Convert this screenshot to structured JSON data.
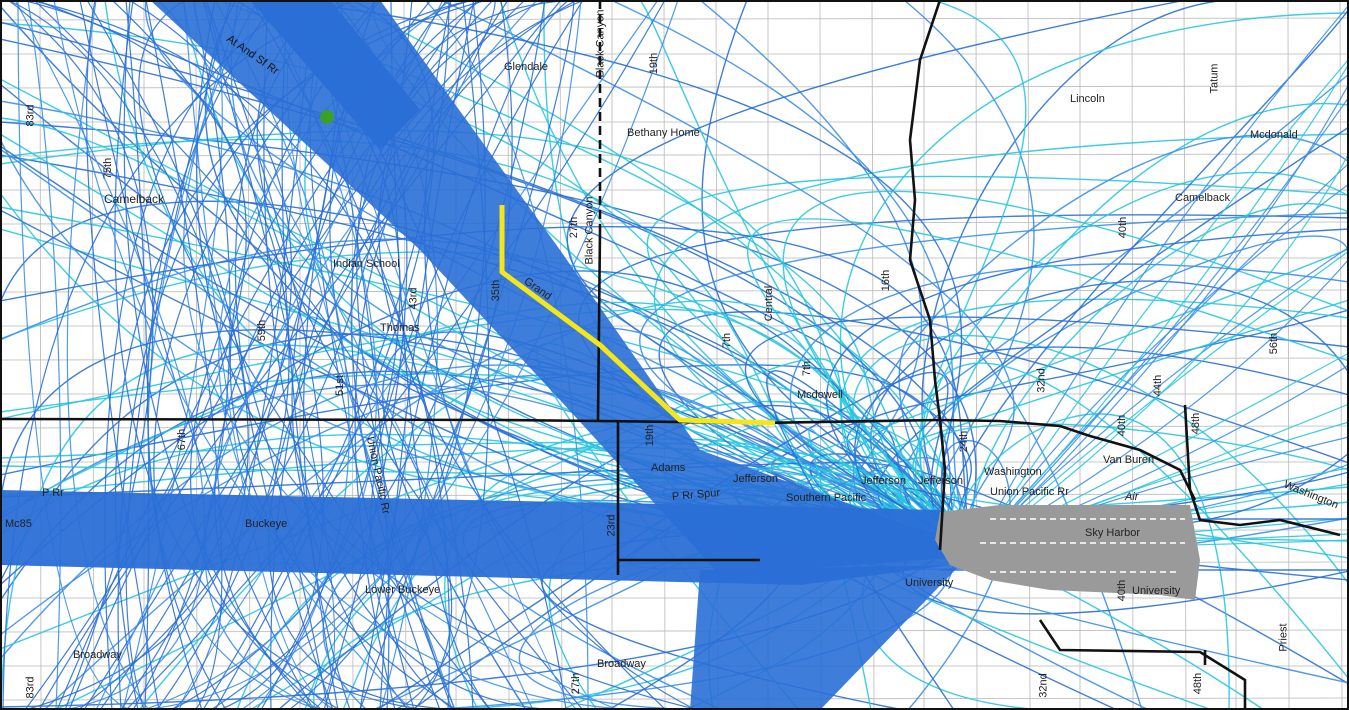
{
  "map": {
    "background": "#ffffff",
    "grid_color": "#b8b8b8",
    "boundary_color": "#111111",
    "track_colors": {
      "dark": "#2a6fd6",
      "mid": "#3d8ee8",
      "light": "#28c6e0"
    },
    "route_color": "#f5e61a",
    "airport_color": "#9a9a9a",
    "marker_color": "#3aa02a"
  },
  "labels": {
    "l83rd_top": "83rd",
    "l75th": "75th",
    "camelback_w": "Camelback",
    "at_and_sf": "At And Sf Rr",
    "glendale": "Glendale",
    "black_canyon_top": "Black Canyon",
    "l19th_top": "19th",
    "bethany_home": "Bethany Home",
    "tatum": "Tatum",
    "lincoln": "Lincoln",
    "mcdonald": "Mcdonald",
    "camelback_e": "Camelback",
    "l27th": "27th",
    "black_canyon_mid": "Black Canyon",
    "indian_school": "Indian School",
    "l35th": "35th",
    "grand": "Grand",
    "l40th_top": "40th",
    "l59th": "59th",
    "l43rd": "43rd",
    "thomas": "Thomas",
    "central": "Central",
    "l16th": "16th",
    "l7th_a": "7th",
    "l7th_b": "7th",
    "mcdowell": "Mcdowell",
    "l32nd_mid": "32nd",
    "l44th": "44th",
    "l56th": "56th",
    "l51st": "51st",
    "l67th": "67th",
    "union_pacific_w": "Union Pacific Rr",
    "l19th_mid": "19th",
    "l24th": "24th",
    "l40th_mid": "40th",
    "l48th_top": "48th",
    "adams": "Adams",
    "jefferson_1": "Jefferson",
    "jefferson_2": "Jefferson",
    "jefferson_3": "Jefferson",
    "washington": "Washington",
    "van_buren": "Van Buren",
    "washington_e": "Washington",
    "p_rr": "P Rr",
    "p_rr_spur": "P Rr Spur",
    "southern_pacific": "Southern Pacific",
    "union_pacific_e": "Union Pacific Rr",
    "air": "Air",
    "mc85": "Mc85",
    "buckeye": "Buckeye",
    "l23rd": "23rd",
    "sky_harbor": "Sky Harbor",
    "university_w": "University",
    "university_e": "University",
    "l40th_low": "40th",
    "lower_buckeye": "Lower Buckeye",
    "broadway_w": "Broadway",
    "broadway_c": "Broadway",
    "priest": "Priest",
    "l83rd_bot": "83rd",
    "l27th_bot": "27th",
    "l32nd_bot": "32nd",
    "l48th_bot": "48th"
  }
}
